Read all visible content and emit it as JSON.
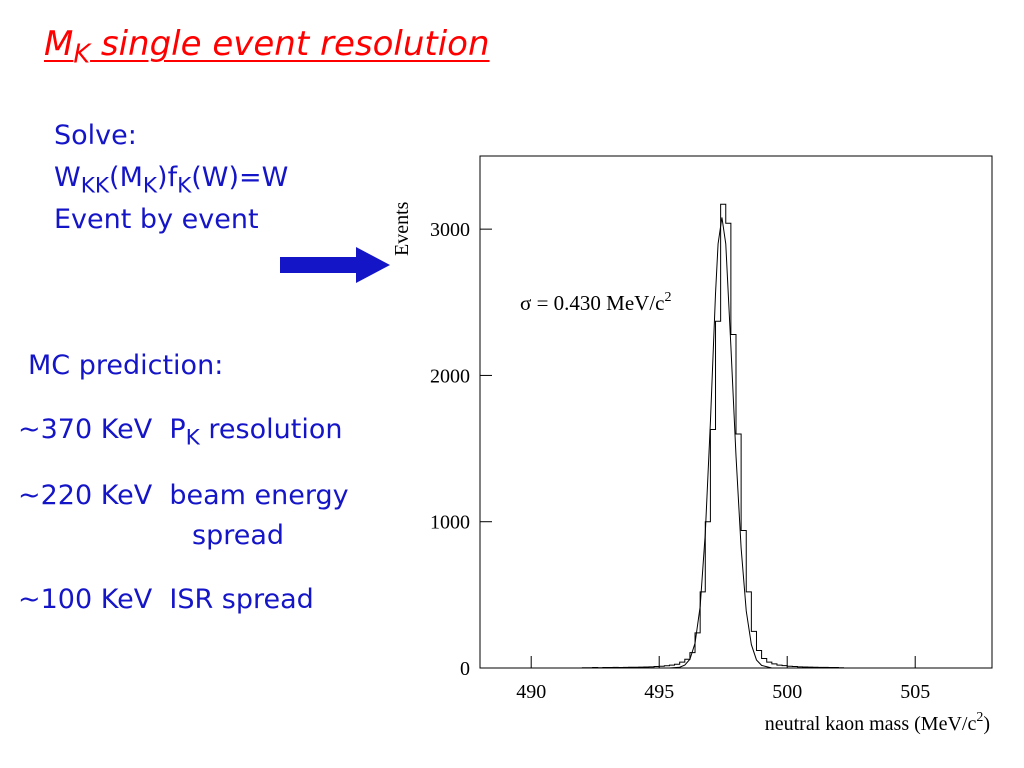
{
  "slide": {
    "title": {
      "main": "M",
      "sub": "K",
      "rest": " single event resolution"
    },
    "solve": {
      "label": "Solve:",
      "equation": [
        {
          "text": "W",
          "sub": "KK"
        },
        {
          "text": "(M",
          "sub": "K"
        },
        {
          "text": ")f",
          "sub": "K"
        },
        {
          "text": "(W)=W",
          "sub": ""
        }
      ],
      "note": "Event by event"
    },
    "mc": {
      "label": "MC prediction:",
      "items": [
        {
          "value": "~370 KeV",
          "text_pre": "P",
          "text_sub": "K",
          "text_post": " resolution"
        },
        {
          "value": "~220 KeV",
          "text_pre": "beam energy",
          "text_sub": "",
          "text_post": "",
          "line2": "spread"
        },
        {
          "value": "~100 KeV",
          "text_pre": "ISR spread",
          "text_sub": "",
          "text_post": ""
        }
      ]
    },
    "colors": {
      "title": "#ff0000",
      "text": "#1515c8",
      "arrow": "#1515c8"
    }
  },
  "chart_data": {
    "type": "histogram",
    "ylabel": "Events",
    "xlabel": {
      "main": "neutral kaon mass (MeV/c",
      "sup": "2",
      "tail": ")"
    },
    "annotation": {
      "main": "σ = 0.430 MeV/c",
      "sup": "2"
    },
    "xlim": [
      488,
      508
    ],
    "ylim": [
      0,
      3500
    ],
    "xticks": [
      490,
      495,
      500,
      505
    ],
    "yticks": [
      0,
      1000,
      2000,
      3000
    ],
    "xtick_labels": [
      "490",
      "495",
      "500",
      "505"
    ],
    "ytick_labels": [
      "0",
      "1000",
      "2000",
      "3000"
    ],
    "bin_width": 0.2,
    "bins": [
      [
        492.0,
        2
      ],
      [
        492.2,
        2
      ],
      [
        492.4,
        3
      ],
      [
        492.6,
        2
      ],
      [
        492.8,
        3
      ],
      [
        493.0,
        3
      ],
      [
        493.2,
        4
      ],
      [
        493.4,
        3
      ],
      [
        493.6,
        4
      ],
      [
        493.8,
        5
      ],
      [
        494.0,
        5
      ],
      [
        494.2,
        6
      ],
      [
        494.4,
        7
      ],
      [
        494.6,
        8
      ],
      [
        494.8,
        10
      ],
      [
        495.0,
        12
      ],
      [
        495.2,
        15
      ],
      [
        495.4,
        20
      ],
      [
        495.6,
        26
      ],
      [
        495.8,
        40
      ],
      [
        496.0,
        60
      ],
      [
        496.2,
        105
      ],
      [
        496.4,
        240
      ],
      [
        496.6,
        520
      ],
      [
        496.8,
        1000
      ],
      [
        497.0,
        1630
      ],
      [
        497.2,
        2370
      ],
      [
        497.4,
        3170
      ],
      [
        497.6,
        3040
      ],
      [
        497.8,
        2280
      ],
      [
        498.0,
        1600
      ],
      [
        498.2,
        940
      ],
      [
        498.4,
        520
      ],
      [
        498.6,
        250
      ],
      [
        498.8,
        120
      ],
      [
        499.0,
        65
      ],
      [
        499.2,
        40
      ],
      [
        499.4,
        28
      ],
      [
        499.6,
        20
      ],
      [
        499.8,
        16
      ],
      [
        500.0,
        12
      ],
      [
        500.2,
        10
      ],
      [
        500.4,
        8
      ],
      [
        500.6,
        7
      ],
      [
        500.8,
        6
      ],
      [
        501.0,
        5
      ],
      [
        501.2,
        4
      ],
      [
        501.4,
        4
      ],
      [
        501.6,
        3
      ],
      [
        501.8,
        3
      ],
      [
        502.0,
        2
      ]
    ],
    "fit_curve": [
      [
        495.4,
        0
      ],
      [
        495.8,
        5
      ],
      [
        496.0,
        20
      ],
      [
        496.2,
        60
      ],
      [
        496.4,
        170
      ],
      [
        496.6,
        420
      ],
      [
        496.8,
        920
      ],
      [
        497.0,
        1680
      ],
      [
        497.2,
        2560
      ],
      [
        497.3,
        2900
      ],
      [
        497.45,
        3080
      ],
      [
        497.6,
        2900
      ],
      [
        497.8,
        2200
      ],
      [
        498.0,
        1450
      ],
      [
        498.2,
        820
      ],
      [
        498.4,
        390
      ],
      [
        498.6,
        160
      ],
      [
        498.8,
        55
      ],
      [
        499.0,
        18
      ],
      [
        499.4,
        0
      ]
    ]
  }
}
